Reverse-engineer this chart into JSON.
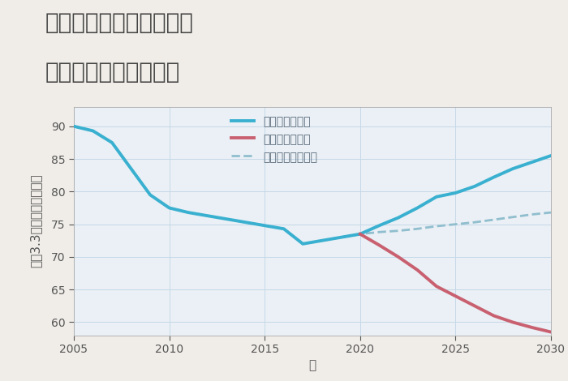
{
  "title_line1": "奈良県奈良市登大路町の",
  "title_line2": "中古戸建ての価格推移",
  "xlabel": "年",
  "ylabel": "坪（3.3㎡）単価（万円）",
  "background_color": "#f0ede8",
  "plot_background_color": "#eaf0f5",
  "grid_color": "#c5d8e8",
  "xlim": [
    2005,
    2030
  ],
  "ylim": [
    58,
    93
  ],
  "yticks": [
    60,
    65,
    70,
    75,
    80,
    85,
    90
  ],
  "xticks": [
    2005,
    2010,
    2015,
    2020,
    2025,
    2030
  ],
  "good_scenario": {
    "label": "グッドシナリオ",
    "color": "#3ab0d0",
    "linewidth": 2.8,
    "x": [
      2005,
      2006,
      2007,
      2008,
      2009,
      2010,
      2011,
      2012,
      2013,
      2014,
      2015,
      2016,
      2017,
      2018,
      2019,
      2020,
      2021,
      2022,
      2023,
      2024,
      2025,
      2026,
      2027,
      2028,
      2029,
      2030
    ],
    "y": [
      90.0,
      89.3,
      87.5,
      83.5,
      79.5,
      77.5,
      76.8,
      76.3,
      75.8,
      75.3,
      74.8,
      74.3,
      72.0,
      72.5,
      73.0,
      73.5,
      74.8,
      76.0,
      77.5,
      79.2,
      79.8,
      80.8,
      82.2,
      83.5,
      84.5,
      85.5
    ]
  },
  "bad_scenario": {
    "label": "バッドシナリオ",
    "color": "#c96070",
    "linewidth": 2.8,
    "x": [
      2020,
      2021,
      2022,
      2023,
      2024,
      2025,
      2026,
      2027,
      2028,
      2029,
      2030
    ],
    "y": [
      73.5,
      71.8,
      70.0,
      68.0,
      65.5,
      64.0,
      62.5,
      61.0,
      60.0,
      59.2,
      58.5
    ]
  },
  "normal_scenario": {
    "label": "ノーマルシナリオ",
    "color": "#90bece",
    "linewidth": 2.0,
    "linestyle": "--",
    "x": [
      2005,
      2006,
      2007,
      2008,
      2009,
      2010,
      2011,
      2012,
      2013,
      2014,
      2015,
      2016,
      2017,
      2018,
      2019,
      2020,
      2021,
      2022,
      2023,
      2024,
      2025,
      2026,
      2027,
      2028,
      2029,
      2030
    ],
    "y": [
      90.0,
      89.3,
      87.5,
      83.5,
      79.5,
      77.5,
      76.8,
      76.3,
      75.8,
      75.3,
      74.8,
      74.3,
      72.0,
      72.5,
      73.0,
      73.5,
      73.8,
      74.0,
      74.3,
      74.7,
      75.0,
      75.3,
      75.7,
      76.1,
      76.5,
      76.8
    ]
  },
  "title_fontsize": 20,
  "axis_label_fontsize": 11,
  "tick_fontsize": 10,
  "legend_fontsize": 10
}
